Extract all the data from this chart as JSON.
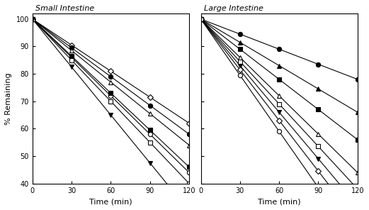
{
  "title_left": "Small Intestine",
  "title_right": "Large Intestine",
  "xlabel": "Time (min)",
  "ylabel": "% Remaining",
  "xlim": [
    0,
    120
  ],
  "ylim": [
    40,
    102
  ],
  "yticks": [
    40,
    50,
    60,
    70,
    80,
    90,
    100
  ],
  "xticks": [
    0,
    30,
    60,
    90,
    120
  ],
  "time_points": [
    0,
    30,
    60,
    90,
    120
  ],
  "series_left": [
    {
      "label": "diamond_open",
      "marker": "D",
      "filled": false,
      "slope": -0.3167,
      "intercept": 100,
      "color": "black"
    },
    {
      "label": "circle_filled",
      "marker": "o",
      "filled": true,
      "slope": -0.35,
      "intercept": 100,
      "color": "black"
    },
    {
      "label": "circle_open",
      "marker": "o",
      "filled": false,
      "slope": -0.4667,
      "intercept": 100,
      "color": "black"
    },
    {
      "label": "triangle_open",
      "marker": "^",
      "filled": false,
      "slope": -0.3833,
      "intercept": 100,
      "color": "black"
    },
    {
      "label": "square_filled",
      "marker": "s",
      "filled": true,
      "slope": -0.45,
      "intercept": 100,
      "color": "black"
    },
    {
      "label": "square_open",
      "marker": "s",
      "filled": false,
      "slope": -0.5,
      "intercept": 100,
      "color": "black"
    },
    {
      "label": "triangle_filled_down",
      "marker": "v",
      "filled": true,
      "slope": -0.5833,
      "intercept": 100,
      "color": "black"
    }
  ],
  "series_right": [
    {
      "label": "circle_filled",
      "marker": "o",
      "filled": true,
      "slope": -0.1833,
      "intercept": 100,
      "color": "black"
    },
    {
      "label": "triangle_filled",
      "marker": "^",
      "filled": true,
      "slope": -0.2833,
      "intercept": 100,
      "color": "black"
    },
    {
      "label": "square_filled",
      "marker": "s",
      "filled": true,
      "slope": -0.3667,
      "intercept": 100,
      "color": "black"
    },
    {
      "label": "triangle_open",
      "marker": "^",
      "filled": false,
      "slope": -0.4667,
      "intercept": 100,
      "color": "black"
    },
    {
      "label": "square_open",
      "marker": "s",
      "filled": false,
      "slope": -0.5167,
      "intercept": 100,
      "color": "black"
    },
    {
      "label": "triangle_down_filled",
      "marker": "v",
      "filled": true,
      "slope": -0.5667,
      "intercept": 100,
      "color": "black"
    },
    {
      "label": "diamond_open",
      "marker": "D",
      "filled": false,
      "slope": -0.6167,
      "intercept": 100,
      "color": "black"
    },
    {
      "label": "circle_open",
      "marker": "o",
      "filled": false,
      "slope": -0.6833,
      "intercept": 100,
      "color": "black"
    }
  ]
}
